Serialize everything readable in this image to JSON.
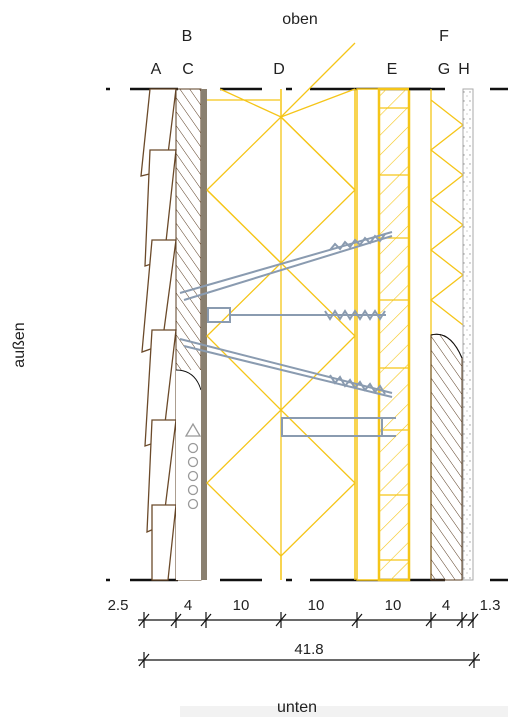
{
  "orientation": {
    "top": "oben",
    "bottom": "unten",
    "outside": "außen"
  },
  "layer_labels": {
    "A": "A",
    "B": "B",
    "C": "C",
    "D": "D",
    "E": "E",
    "F": "F",
    "G": "G",
    "H": "H"
  },
  "dimensions": {
    "d1": "2.5",
    "d2": "4",
    "d3": "10",
    "d4": "10",
    "d5": "10",
    "d6": "4",
    "d7": "1.3",
    "total": "41.8"
  },
  "colors": {
    "wood": "#6b4a2a",
    "insulation": "#f5c518",
    "screw": "#8a9bb0",
    "membrane": "#8a8070",
    "line": "#111111"
  }
}
